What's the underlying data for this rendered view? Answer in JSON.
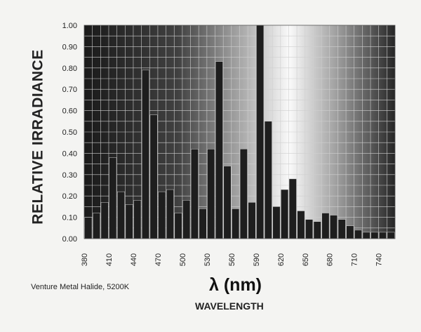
{
  "chart_data": {
    "type": "bar",
    "title": "",
    "xlabel": "WAVELENGTH",
    "xlabel_symbol": "λ (nm)",
    "ylabel": "RELATIVE IRRADIANCE",
    "caption": "Venture Metal Halide, 5200K",
    "ylim": [
      0,
      1.0
    ],
    "xlim": [
      380,
      760
    ],
    "grid": true,
    "yticks": [
      "0.00",
      "0.10",
      "0.20",
      "0.30",
      "0.40",
      "0.50",
      "0.60",
      "0.70",
      "0.80",
      "0.90",
      "1.00"
    ],
    "xticks": [
      "380",
      "410",
      "440",
      "470",
      "500",
      "530",
      "560",
      "590",
      "620",
      "650",
      "680",
      "710",
      "740"
    ],
    "bar_width_nm": 10,
    "categories": [
      380,
      390,
      400,
      410,
      420,
      430,
      440,
      450,
      460,
      470,
      480,
      490,
      500,
      510,
      520,
      530,
      540,
      550,
      560,
      570,
      580,
      590,
      600,
      610,
      620,
      630,
      640,
      650,
      660,
      670,
      680,
      690,
      700,
      710,
      720,
      730,
      740,
      750
    ],
    "values": [
      0.1,
      0.12,
      0.17,
      0.38,
      0.22,
      0.16,
      0.18,
      0.79,
      0.58,
      0.22,
      0.23,
      0.12,
      0.18,
      0.42,
      0.14,
      0.42,
      0.83,
      0.34,
      0.14,
      0.42,
      0.17,
      1.0,
      0.55,
      0.15,
      0.23,
      0.28,
      0.13,
      0.09,
      0.08,
      0.12,
      0.11,
      0.09,
      0.06,
      0.04,
      0.03,
      0.03,
      0.03,
      0.03
    ]
  },
  "colors": {
    "plot_dark": "#1a1a1a",
    "plot_light": "#fafafa",
    "bar": "#1e1e1e",
    "grid": "#cfcfcf",
    "text": "#222222"
  }
}
